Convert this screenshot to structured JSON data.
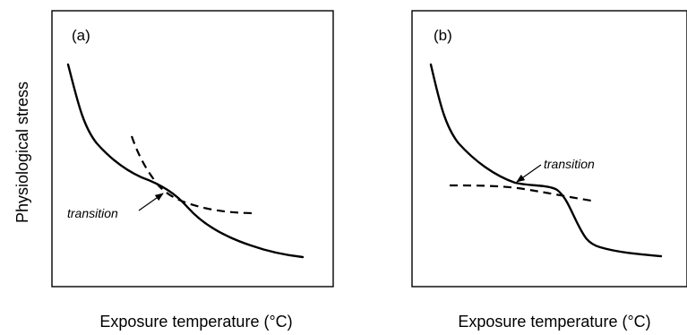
{
  "y_axis_label": "Physiological stress",
  "panels": [
    {
      "label": "(a)",
      "x_axis_label": "Exposure temperature (°C)",
      "annotation": "transition"
    },
    {
      "label": "(b)",
      "x_axis_label": "Exposure temperature (°C)",
      "annotation": "transition"
    }
  ]
}
